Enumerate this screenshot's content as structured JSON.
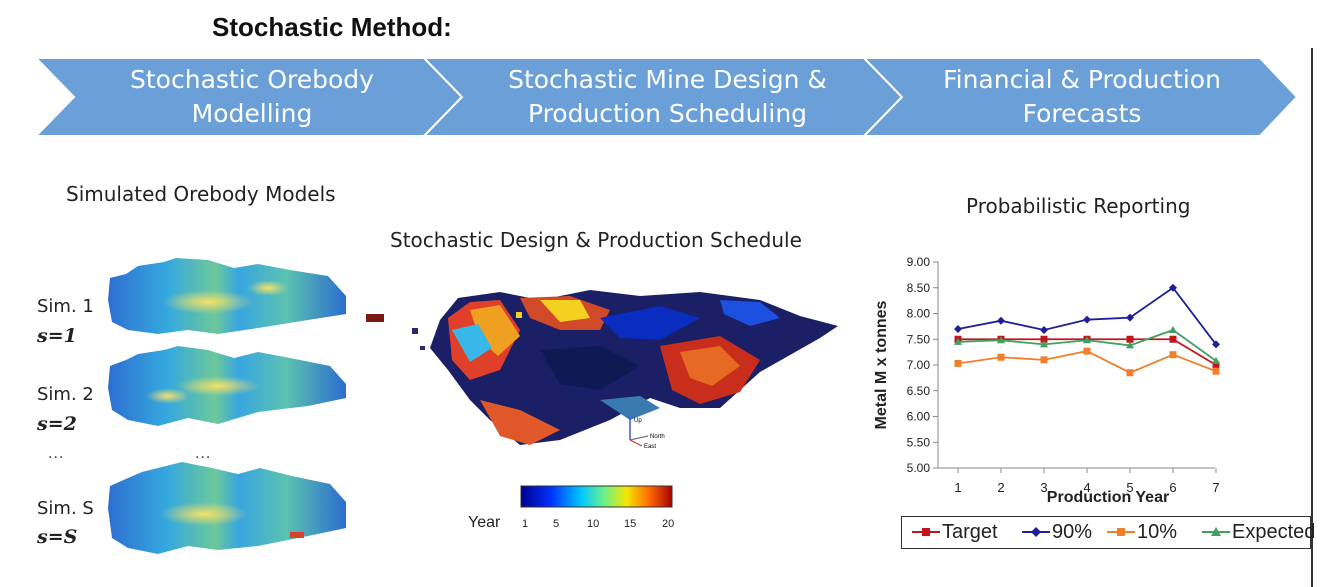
{
  "page": {
    "title": "Stochastic Method:"
  },
  "process_steps": [
    {
      "line1": "Stochastic Orebody",
      "line2": "Modelling"
    },
    {
      "line1": "Stochastic Mine Design &",
      "line2": "Production Scheduling"
    },
    {
      "line1": "Financial & Production",
      "line2": "Forecasts"
    }
  ],
  "simulated_models": {
    "title": "Simulated Orebody Models",
    "sims": [
      {
        "label": "Sim. 1",
        "sub": "s=1"
      },
      {
        "label": "Sim. 2",
        "sub": "s=2"
      },
      {
        "label": "Sim. S",
        "sub": "s=S"
      }
    ],
    "ellipsis_left": "...",
    "ellipsis_right": "..."
  },
  "schedule": {
    "title": "Stochastic Design & Production Schedule",
    "axes_labels": {
      "up": "Up",
      "north": "North",
      "east": "East"
    },
    "colorbar": {
      "title": "Year",
      "ticks": [
        "1",
        "5",
        "10",
        "15",
        "20"
      ]
    }
  },
  "reporting": {
    "title": "Probabilistic Reporting"
  },
  "chart_data": {
    "type": "line",
    "title": "",
    "xlabel": "Production Year",
    "ylabel": "Metal  M x tonnes",
    "x": [
      1,
      2,
      3,
      4,
      5,
      6,
      7
    ],
    "ylim": [
      5.0,
      9.0
    ],
    "yticks": [
      "5.00",
      "5.50",
      "6.00",
      "6.50",
      "7.00",
      "7.50",
      "8.00",
      "8.50",
      "9.00"
    ],
    "series": [
      {
        "name": "Target",
        "color": "#c0151b",
        "marker": "square",
        "values": [
          7.5,
          7.5,
          7.5,
          7.5,
          7.5,
          7.5,
          7.0
        ]
      },
      {
        "name": "90%",
        "color": "#1e1e96",
        "marker": "diamond",
        "values": [
          7.7,
          7.86,
          7.68,
          7.88,
          7.92,
          8.5,
          7.4
        ]
      },
      {
        "name": "10%",
        "color": "#f07f2c",
        "marker": "square",
        "values": [
          7.03,
          7.15,
          7.1,
          7.27,
          6.85,
          7.2,
          6.88
        ]
      },
      {
        "name": "Expected",
        "color": "#40a060",
        "marker": "triangle",
        "values": [
          7.45,
          7.48,
          7.4,
          7.48,
          7.38,
          7.68,
          7.08
        ]
      }
    ],
    "grid": false,
    "legend": "bottom"
  }
}
